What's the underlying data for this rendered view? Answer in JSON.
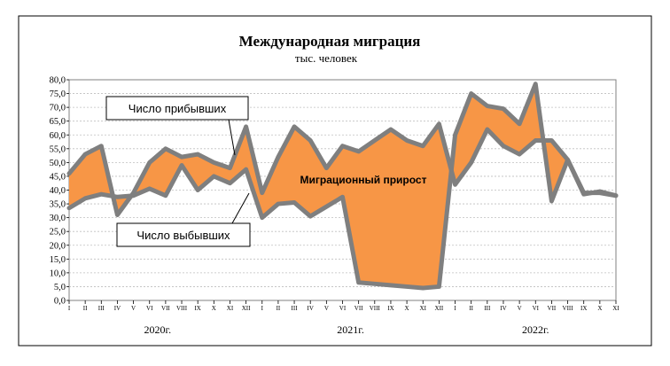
{
  "chart_data": {
    "type": "area",
    "title": "Международная миграция",
    "subtitle": "тыс. человек",
    "ylim": [
      0,
      80
    ],
    "yticks": [
      "0,0",
      "5,0",
      "10,0",
      "15,0",
      "20,0",
      "25,0",
      "30,0",
      "35,0",
      "40,0",
      "45,0",
      "50,0",
      "55,0",
      "60,0",
      "65,0",
      "70,0",
      "75,0",
      "80,0"
    ],
    "categories": [
      "I",
      "II",
      "III",
      "IV",
      "V",
      "VI",
      "VII",
      "VIII",
      "IX",
      "X",
      "XI",
      "XII",
      "I",
      "II",
      "III",
      "IV",
      "V",
      "VI",
      "VII",
      "VIII",
      "IX",
      "X",
      "XI",
      "XII",
      "I",
      "II",
      "III",
      "IV",
      "V",
      "VI",
      "VII",
      "VIII",
      "IX",
      "X",
      "XI"
    ],
    "years": [
      {
        "label": "2020г.",
        "start": 0,
        "end": 11
      },
      {
        "label": "2021г.",
        "start": 12,
        "end": 23
      },
      {
        "label": "2022г.",
        "start": 24,
        "end": 34
      }
    ],
    "series": [
      {
        "name": "Число прибывших",
        "values": [
          46,
          53,
          56,
          31,
          39,
          50,
          55,
          52,
          53,
          50,
          48,
          63,
          39,
          52,
          63,
          58,
          48,
          56,
          54,
          58,
          62,
          58,
          56,
          64,
          42,
          50,
          62,
          56,
          53,
          58,
          58,
          51,
          38.5,
          39.5,
          38
        ]
      },
      {
        "name": "Число выбывших",
        "values": [
          33.5,
          37,
          38.5,
          37.5,
          38,
          40.5,
          38,
          49,
          40,
          45,
          42.5,
          47.5,
          30,
          35,
          35.5,
          30.5,
          34,
          37.5,
          6.5,
          6,
          5.5,
          5,
          4.5,
          5,
          60,
          75,
          70.5,
          69.5,
          64,
          78.5,
          36,
          51,
          39,
          39,
          38
        ]
      }
    ],
    "annotations": {
      "gain": "Миграционный прирост"
    }
  },
  "colors": {
    "fill": "#F79646",
    "line": "#7F7F7F",
    "grid": "#BFBFBF"
  }
}
